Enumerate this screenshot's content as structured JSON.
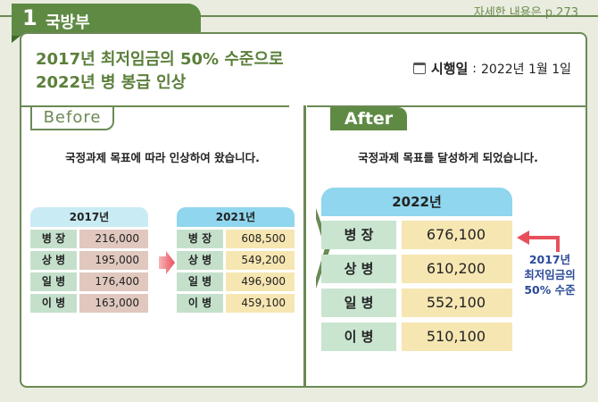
{
  "header": {
    "number": "1",
    "ministry": "국방부",
    "page_ref": "자세한 내용은 p.273"
  },
  "title": {
    "line1": "2017년 최저임금의 50% 수준으로",
    "line2": "2022년 병 봉급 인상"
  },
  "effective": {
    "label": "시행일",
    "separator": ":",
    "date": "2022년 1월 1일",
    "icon": "calendar-icon"
  },
  "before": {
    "tab": "Before",
    "description": "국정과제 목표에 따라 인상하여 왔습니다.",
    "tables": [
      {
        "year": "2017년",
        "rows": [
          {
            "rank": "병 장",
            "pay": "216,000"
          },
          {
            "rank": "상 병",
            "pay": "195,000"
          },
          {
            "rank": "일 병",
            "pay": "176,400"
          },
          {
            "rank": "이 병",
            "pay": "163,000"
          }
        ]
      },
      {
        "year": "2021년",
        "rows": [
          {
            "rank": "병 장",
            "pay": "608,500"
          },
          {
            "rank": "상 병",
            "pay": "549,200"
          },
          {
            "rank": "일 병",
            "pay": "496,900"
          },
          {
            "rank": "이 병",
            "pay": "459,100"
          }
        ]
      }
    ]
  },
  "after": {
    "tab": "After",
    "description": "국정과제 목표를 달성하게 되었습니다.",
    "table": {
      "year": "2022년",
      "rows": [
        {
          "rank": "병 장",
          "pay": "676,100"
        },
        {
          "rank": "상 병",
          "pay": "610,200"
        },
        {
          "rank": "일 병",
          "pay": "552,100"
        },
        {
          "rank": "이 병",
          "pay": "510,100"
        }
      ]
    },
    "note": {
      "line1": "2017년",
      "line2": "최저임금의",
      "line3": "50% 수준"
    }
  },
  "colors": {
    "green": "#5f8a44",
    "note_blue": "#2c4a98",
    "arrow_red": "#e8505b"
  }
}
